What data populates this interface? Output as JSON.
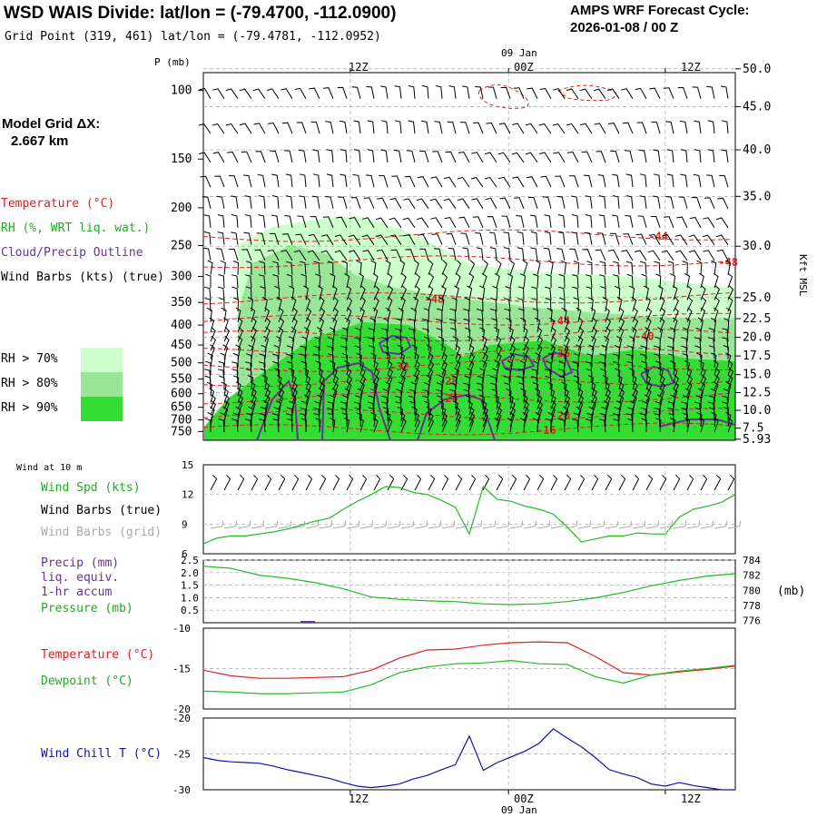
{
  "header": {
    "title": "WSD WAIS Divide:  lat/lon = (-79.4700, -112.0900)",
    "subtitle": "Grid Point (319, 461) lat/lon = (-79.4781, -112.0952)",
    "cycle_label": "AMPS WRF Forecast Cycle:",
    "cycle_value": "2026-01-08 / 00  Z"
  },
  "model_grid": {
    "label": "Model Grid ΔX:",
    "value": "2.667 km"
  },
  "legend": {
    "temperature": "Temperature (°C)",
    "rh": "RH (%, WRT liq. wat.)",
    "cloud": "Cloud/Precip Outline",
    "wind_barbs": "Wind Barbs (kts) (true)",
    "rh70": "RH > 70%",
    "rh80": "RH > 80%",
    "rh90": "RH > 90%"
  },
  "colors": {
    "temperature": "#dd2222",
    "rh70": "#ccffcc",
    "rh80": "#99e699",
    "rh90": "#33dd33",
    "cloud": "#663399",
    "wind_speed": "#22bb22",
    "dewpoint": "#22bb22",
    "pressure": "#22bb22",
    "wind_chill": "#1111aa",
    "grid_barbs": "#aaaaaa"
  },
  "time_axis": {
    "top_labels": [
      "12Z",
      "00Z",
      "12Z"
    ],
    "bottom_labels": [
      "12Z",
      "00Z",
      "12Z"
    ],
    "date_label": "09 Jan"
  },
  "chart_data": [
    {
      "type": "heatmap",
      "name": "time-height cross section",
      "y_axis_title": "P (mb)",
      "pressure_ticks": [
        100,
        150,
        200,
        250,
        300,
        350,
        400,
        450,
        500,
        550,
        600,
        650,
        700,
        750
      ],
      "right_axis_title": "Kft MSL",
      "height_ticks_kft": [
        "50.0",
        "45.0",
        "40.0",
        "35.0",
        "30.0",
        "25.0",
        "22.5",
        "20.0",
        "17.5",
        "15.0",
        "12.5",
        "10.0",
        "7.5",
        "5.93"
      ],
      "height_tick_pressures": [
        88,
        110,
        142,
        187,
        251,
        340,
        385,
        430,
        480,
        536,
        596,
        662,
        735,
        785
      ],
      "temperature_isotherms": [
        {
          "label": "-44",
          "x_hour": 32.5,
          "p": 237
        },
        {
          "label": "-48",
          "x_hour": 37.5,
          "p": 276
        },
        {
          "label": "-48",
          "x_hour": 16.5,
          "p": 343
        },
        {
          "label": "-44",
          "x_hour": 25.5,
          "p": 390
        },
        {
          "label": "-40",
          "x_hour": 31.5,
          "p": 428
        },
        {
          "label": "-36",
          "x_hour": 25.5,
          "p": 473
        },
        {
          "label": "-32",
          "x_hour": 14.0,
          "p": 511
        },
        {
          "label": "-28",
          "x_hour": 17.5,
          "p": 557
        },
        {
          "label": "-24",
          "x_hour": 17.5,
          "p": 617
        },
        {
          "label": "-20",
          "x_hour": 25.5,
          "p": 683
        },
        {
          "label": "-16",
          "x_hour": 24.5,
          "p": 745
        }
      ]
    },
    {
      "type": "line",
      "name": "10 m wind",
      "panel_label": "Wind at 10 m",
      "series_labels": [
        "Wind Spd (kts)",
        "Wind Barbs (true)",
        "Wind Barbs (grid)"
      ],
      "ylim": [
        6,
        15
      ],
      "y_ticks": [
        6,
        9,
        12,
        15
      ],
      "x_hours": [
        0,
        1,
        2,
        3,
        4,
        5,
        6,
        7,
        8,
        9,
        10,
        11,
        12,
        13,
        14,
        15,
        16,
        17,
        18,
        19,
        20,
        21,
        22,
        23,
        24,
        25,
        26,
        27,
        28,
        29,
        30,
        31,
        32,
        33,
        34,
        35,
        36,
        37,
        38
      ],
      "wind_speed": [
        7.0,
        7.6,
        7.8,
        7.8,
        8.0,
        8.2,
        8.5,
        8.9,
        9.3,
        9.6,
        10.5,
        11.3,
        12.0,
        12.8,
        12.7,
        12.2,
        12.0,
        11.4,
        10.7,
        8.0,
        12.8,
        11.5,
        11.3,
        10.8,
        10.5,
        10.0,
        8.7,
        7.2,
        7.5,
        7.8,
        7.8,
        8.1,
        8.0,
        8.0,
        9.7,
        10.5,
        10.8,
        11.2,
        12.0
      ]
    },
    {
      "type": "line",
      "name": "precipitation and pressure",
      "series_labels": [
        "Precip (mm)",
        "liq. equiv.",
        "1-hr accum",
        "Pressure (mb)"
      ],
      "precip_ticks": [
        "0.5",
        "1.0",
        "1.5",
        "2.0",
        "2.5"
      ],
      "precip_ylim": [
        0,
        2.5
      ],
      "pressure_ticks": [
        776,
        778,
        780,
        782,
        784
      ],
      "pressure_ylim": [
        775.7,
        784.0
      ],
      "pressure_unit": "(mb)",
      "x_hours": [
        0,
        2,
        4,
        6,
        8,
        10,
        12,
        14,
        16,
        18,
        20,
        22,
        24,
        26,
        28,
        30,
        32,
        34,
        36,
        38
      ],
      "pressure": [
        783.2,
        782.9,
        782.0,
        781.6,
        781.0,
        780.2,
        779.1,
        778.8,
        778.6,
        778.5,
        778.2,
        778.1,
        778.2,
        778.5,
        779.0,
        779.7,
        780.6,
        781.3,
        781.9,
        782.2
      ],
      "precip": [
        0,
        0,
        0,
        0,
        0,
        0,
        0,
        0,
        0,
        0,
        0,
        0,
        0,
        0,
        0,
        0,
        0,
        0,
        0,
        0
      ]
    },
    {
      "type": "line",
      "name": "temperature and dewpoint",
      "series_labels": [
        "Temperature (°C)",
        "Dewpoint (°C)"
      ],
      "ylim": [
        -20,
        -10
      ],
      "y_ticks": [
        -20,
        -15,
        -10
      ],
      "x_hours": [
        0,
        2,
        4,
        6,
        8,
        10,
        12,
        14,
        16,
        18,
        20,
        22,
        24,
        26,
        28,
        30,
        32,
        34,
        36,
        38
      ],
      "temperature": [
        -15.2,
        -15.9,
        -16.2,
        -16.2,
        -16.1,
        -16.0,
        -15.2,
        -13.7,
        -12.7,
        -12.6,
        -12.1,
        -11.8,
        -11.7,
        -11.8,
        -13.5,
        -15.5,
        -15.8,
        -15.4,
        -15.1,
        -14.7
      ],
      "dewpoint": [
        -17.8,
        -17.9,
        -18.1,
        -18.1,
        -18.0,
        -17.9,
        -17.0,
        -15.5,
        -14.8,
        -14.4,
        -14.3,
        -14.0,
        -14.4,
        -14.5,
        -16.0,
        -16.8,
        -15.8,
        -15.3,
        -15.0,
        -14.6
      ]
    },
    {
      "type": "line",
      "name": "wind chill",
      "series_labels": [
        "Wind Chill T (°C)"
      ],
      "ylim": [
        -30,
        -20
      ],
      "y_ticks": [
        -30,
        -25,
        -20
      ],
      "x_hours": [
        0,
        1,
        2,
        3,
        4,
        5,
        6,
        7,
        8,
        9,
        10,
        11,
        12,
        13,
        14,
        15,
        16,
        17,
        18,
        19,
        20,
        21,
        22,
        23,
        24,
        25,
        26,
        27,
        28,
        29,
        30,
        31,
        32,
        33,
        34,
        35,
        36,
        37,
        38
      ],
      "wind_chill": [
        -25.5,
        -25.9,
        -26.1,
        -26.2,
        -26.3,
        -26.7,
        -27.2,
        -27.6,
        -28.0,
        -28.4,
        -29.0,
        -29.5,
        -29.7,
        -29.5,
        -29.2,
        -28.5,
        -28.0,
        -27.2,
        -26.5,
        -22.5,
        -27.3,
        -26.2,
        -25.4,
        -24.6,
        -23.5,
        -21.5,
        -22.8,
        -24.0,
        -25.5,
        -27.2,
        -27.8,
        -28.3,
        -29.2,
        -29.5,
        -29.0,
        -29.4,
        -29.7,
        -30.0,
        -30.0
      ]
    }
  ]
}
